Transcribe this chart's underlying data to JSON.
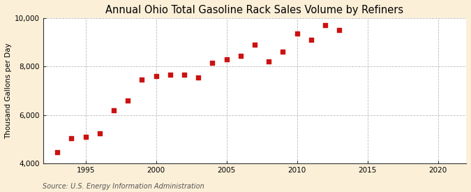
{
  "title": "Annual Ohio Total Gasoline Rack Sales Volume by Refiners",
  "ylabel": "Thousand Gallons per Day",
  "source": "Source: U.S. Energy Information Administration",
  "figure_bg_color": "#fcefd8",
  "plot_bg_color": "#ffffff",
  "marker_color": "#cc1111",
  "marker": "s",
  "marker_size": 4,
  "years": [
    1993,
    1994,
    1995,
    1996,
    1997,
    1998,
    1999,
    2000,
    2001,
    2002,
    2003,
    2004,
    2005,
    2006,
    2007,
    2008,
    2009,
    2010,
    2011,
    2012,
    2013
  ],
  "values": [
    4450,
    5050,
    5100,
    5250,
    6200,
    6600,
    7450,
    7600,
    7650,
    7650,
    7550,
    8150,
    8300,
    8450,
    8900,
    8200,
    8600,
    9350,
    9100,
    9700,
    9500
  ],
  "xlim": [
    1992,
    2022
  ],
  "ylim": [
    4000,
    10000
  ],
  "xticks": [
    1995,
    2000,
    2005,
    2010,
    2015,
    2020
  ],
  "yticks": [
    4000,
    6000,
    8000,
    10000
  ],
  "ytick_labels": [
    "4,000",
    "6,000",
    "8,000",
    "10,000"
  ],
  "grid_color": "#aaaaaa",
  "grid_style": "--",
  "grid_alpha": 0.8,
  "grid_linewidth": 0.6,
  "title_fontsize": 10.5,
  "label_fontsize": 7.5,
  "tick_fontsize": 7.5,
  "source_fontsize": 7
}
